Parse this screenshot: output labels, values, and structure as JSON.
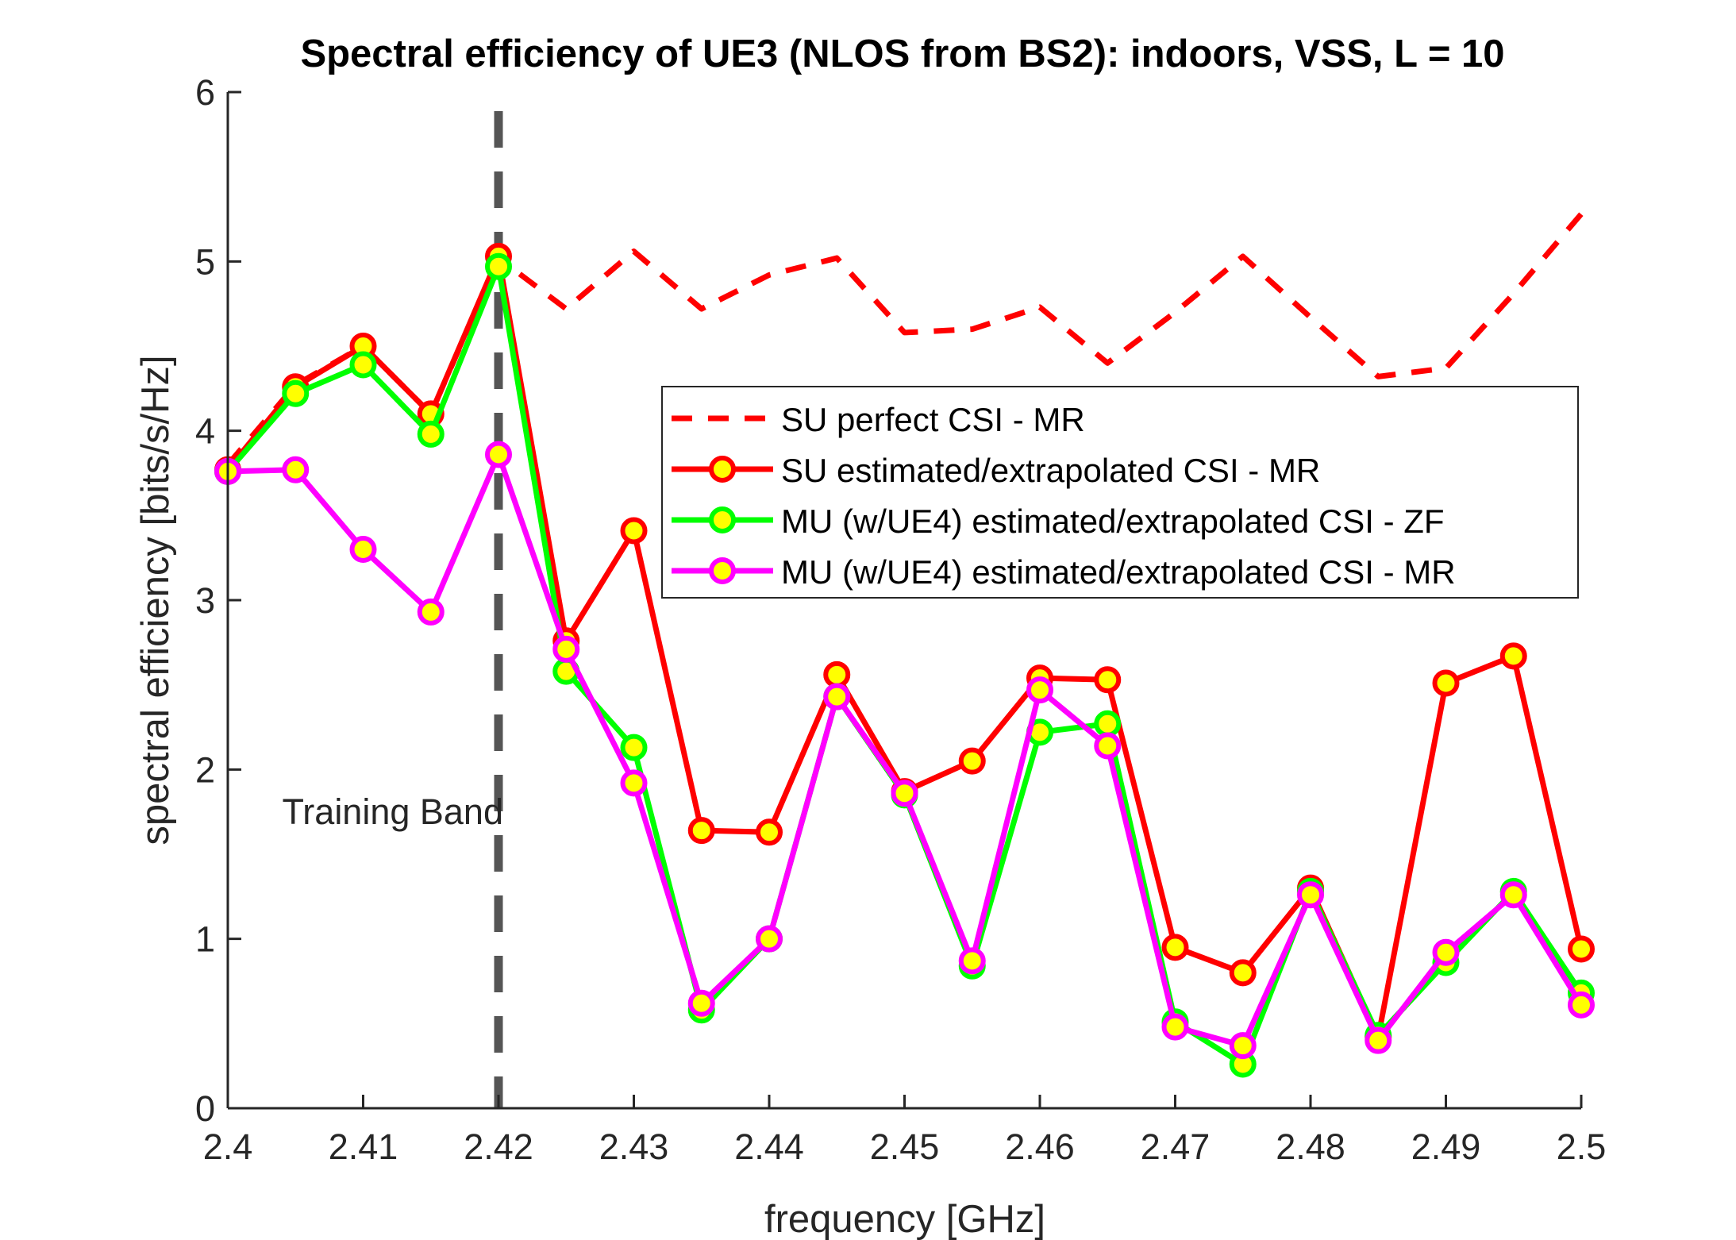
{
  "chart_data": {
    "type": "line",
    "title": "Spectral efficiency of UE3 (NLOS from BS2): indoors, VSS, L = 10",
    "xlabel": "frequency [GHz]",
    "ylabel": "spectral efficiency [bits/s/Hz]",
    "xlim": [
      2.4,
      2.5
    ],
    "ylim": [
      0,
      6
    ],
    "xticks": [
      2.4,
      2.41,
      2.42,
      2.43,
      2.44,
      2.45,
      2.46,
      2.47,
      2.48,
      2.49,
      2.5
    ],
    "xtick_labels": [
      "2.4",
      "2.41",
      "2.42",
      "2.43",
      "2.44",
      "2.45",
      "2.46",
      "2.47",
      "2.48",
      "2.49",
      "2.5"
    ],
    "yticks": [
      0,
      1,
      2,
      3,
      4,
      5,
      6
    ],
    "ytick_labels": [
      "0",
      "1",
      "2",
      "3",
      "4",
      "5",
      "6"
    ],
    "grid": false,
    "legend_position": "center-right",
    "annotation": {
      "text": "Training Band",
      "x": 2.42
    },
    "x": [
      2.4,
      2.405,
      2.41,
      2.415,
      2.42,
      2.425,
      2.43,
      2.435,
      2.44,
      2.445,
      2.45,
      2.455,
      2.46,
      2.465,
      2.47,
      2.475,
      2.48,
      2.485,
      2.49,
      2.495,
      2.5
    ],
    "series": [
      {
        "name": "SU perfect CSI - MR",
        "color": "#ff0000",
        "style": "dashed",
        "marker": "none",
        "values": [
          3.8,
          4.27,
          4.5,
          4.1,
          5.02,
          4.72,
          5.06,
          4.72,
          4.92,
          5.02,
          4.58,
          4.6,
          4.73,
          4.4,
          4.7,
          5.03,
          4.67,
          4.32,
          4.37,
          4.81,
          5.28
        ]
      },
      {
        "name": "SU estimated/extrapolated CSI - MR",
        "color": "#ff0000",
        "style": "solid",
        "marker": "circle",
        "values": [
          3.77,
          4.26,
          4.5,
          4.1,
          5.03,
          2.76,
          3.41,
          1.64,
          1.63,
          2.56,
          1.87,
          2.05,
          2.54,
          2.53,
          0.95,
          0.8,
          1.3,
          0.42,
          2.51,
          2.67,
          0.94
        ]
      },
      {
        "name": "MU (w/UE4) estimated/extrapolated CSI - ZF",
        "color": "#00ff00",
        "style": "solid",
        "marker": "circle",
        "values": [
          3.76,
          4.22,
          4.39,
          3.98,
          4.97,
          2.58,
          2.13,
          0.58,
          1.0,
          2.43,
          1.85,
          0.84,
          2.22,
          2.27,
          0.51,
          0.26,
          1.28,
          0.43,
          0.86,
          1.28,
          0.68
        ]
      },
      {
        "name": "MU (w/UE4) estimated/extrapolated CSI - MR",
        "color": "#ff00ff",
        "style": "solid",
        "marker": "circle",
        "values": [
          3.76,
          3.77,
          3.3,
          2.93,
          3.86,
          2.71,
          1.92,
          0.62,
          1.0,
          2.43,
          1.86,
          0.87,
          2.47,
          2.14,
          0.48,
          0.37,
          1.26,
          0.4,
          0.92,
          1.26,
          0.61
        ]
      }
    ]
  }
}
